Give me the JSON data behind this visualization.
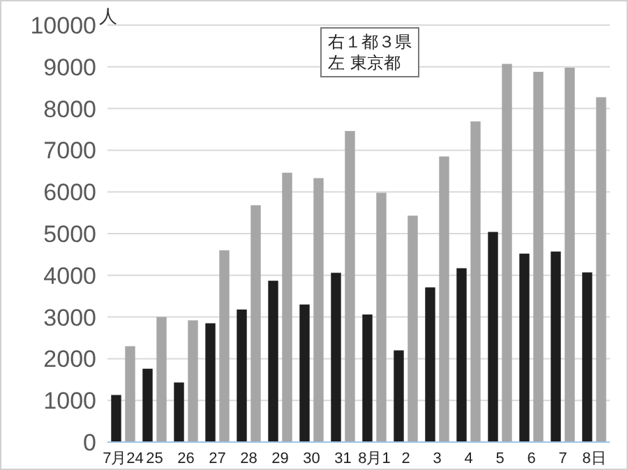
{
  "chart_data": {
    "type": "bar",
    "ylabel": "人",
    "categories": [
      "7月24",
      "25",
      "26",
      "27",
      "28",
      "29",
      "30",
      "31",
      "8月1",
      "2",
      "3",
      "4",
      "5",
      "6",
      "7",
      "8日"
    ],
    "series": [
      {
        "color": "#1e1e1e",
        "values": [
          1130,
          1760,
          1430,
          2850,
          3180,
          3870,
          3300,
          4060,
          3060,
          2200,
          3710,
          4170,
          5040,
          4520,
          4570,
          4070
        ]
      },
      {
        "color": "#a6a6a6",
        "values": [
          2300,
          3000,
          2920,
          4600,
          5680,
          6460,
          6330,
          7460,
          5980,
          5430,
          6850,
          7690,
          9070,
          8880,
          8980,
          8270
        ]
      }
    ],
    "annotations": [
      "右１都３県",
      "左 東京都"
    ],
    "ylim": [
      0,
      10000
    ],
    "yticks": [
      0,
      1000,
      2000,
      3000,
      4000,
      5000,
      6000,
      7000,
      8000,
      9000,
      10000
    ],
    "grid": "y"
  }
}
